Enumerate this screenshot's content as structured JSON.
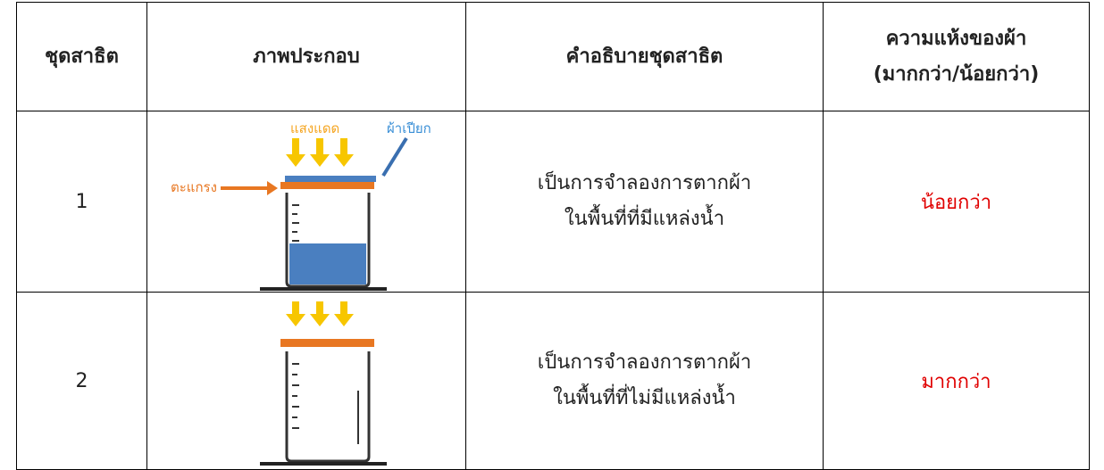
{
  "table": {
    "header": [
      "ชุดสาธิต",
      "ภาพประกอบ",
      "คำอธิบายชุดสาธิต",
      [
        "ความแห้งของผ้า",
        "(มากกว่า/น้อยกว่า)"
      ]
    ],
    "rows": [
      {
        "set": "1",
        "description": [
          "เป็นการจำลองการตากผ้า",
          "ในพื้นที่ที่มีแหล่งน้ำ"
        ],
        "result": "น้อยกว่า"
      },
      {
        "set": "2",
        "description": [
          "เป็นการจำลองการตากผ้า",
          "ในพื้นที่ที่ไม่มีแหล่งน้ำ"
        ],
        "result": "มากกว่า"
      }
    ]
  },
  "figure_labels": {
    "sunlight": "แสงแดด",
    "wet_cloth": "ผ้าเปียก",
    "rack": "ตะแกรง"
  }
}
